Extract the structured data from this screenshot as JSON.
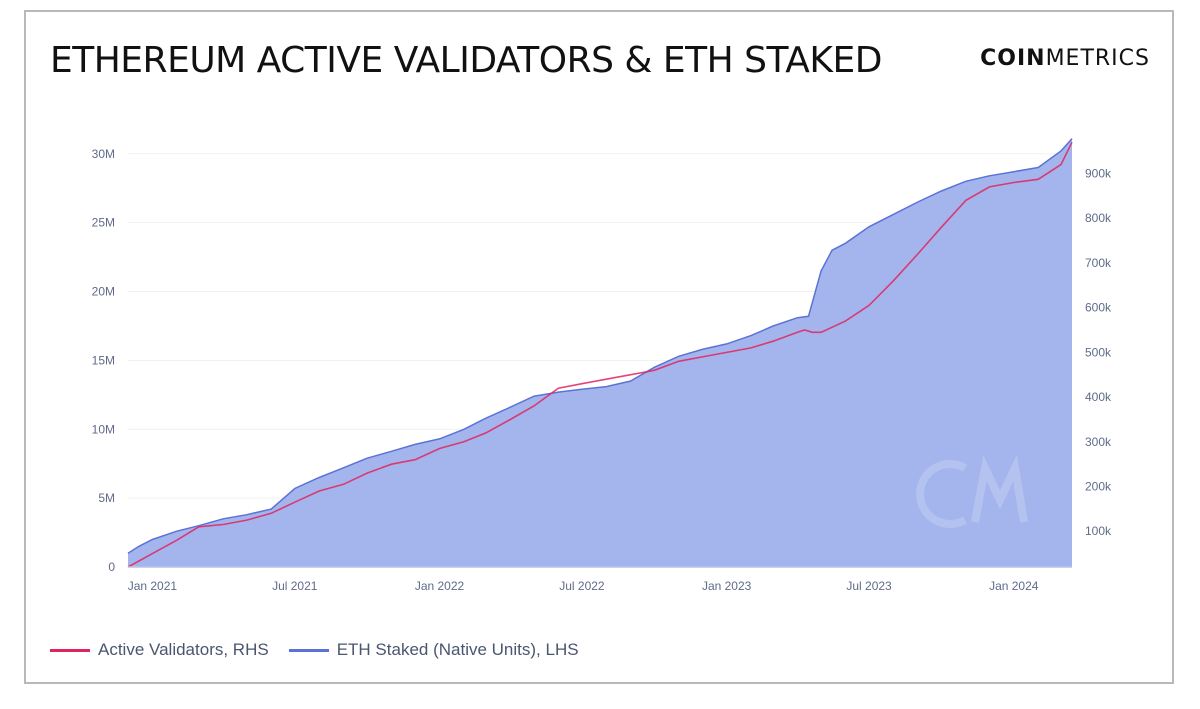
{
  "title": "ETHEREUM ACTIVE VALIDATORS & ETH STAKED",
  "brand": {
    "bold": "COIN",
    "light": "METRICS"
  },
  "colors": {
    "validators": "#e0245e",
    "staked_line": "#5b73d6",
    "staked_fill": "#9fb1ec",
    "tick": "#5f6b8a",
    "axis": "#b8c3e8"
  },
  "chart_data": {
    "type": "area",
    "x_ticks": [
      "Jan 2021",
      "Jul 2021",
      "Jan 2022",
      "Jul 2022",
      "Jan 2023",
      "Jul 2023",
      "Jan 2024"
    ],
    "x_range": [
      "2020-12-01",
      "2024-03-15"
    ],
    "y_left": {
      "ticks": [
        "0",
        "5M",
        "10M",
        "15M",
        "20M",
        "25M",
        "30M"
      ],
      "range": [
        0,
        31000000
      ]
    },
    "y_right": {
      "ticks": [
        "100k",
        "200k",
        "300k",
        "400k",
        "500k",
        "600k",
        "700k",
        "800k",
        "900k"
      ],
      "range": [
        20000,
        975000
      ]
    },
    "series": [
      {
        "name": "ETH Staked (Native Units), LHS",
        "axis": "left",
        "x": [
          "2020-12-01",
          "2020-12-15",
          "2021-01-01",
          "2021-02-01",
          "2021-03-01",
          "2021-04-01",
          "2021-05-01",
          "2021-06-01",
          "2021-07-01",
          "2021-08-01",
          "2021-09-01",
          "2021-10-01",
          "2021-11-01",
          "2021-12-01",
          "2022-01-01",
          "2022-02-01",
          "2022-03-01",
          "2022-04-01",
          "2022-05-01",
          "2022-06-01",
          "2022-07-01",
          "2022-08-01",
          "2022-09-01",
          "2022-10-01",
          "2022-11-01",
          "2022-12-01",
          "2023-01-01",
          "2023-02-01",
          "2023-03-01",
          "2023-04-01",
          "2023-04-15",
          "2023-05-01",
          "2023-05-15",
          "2023-06-01",
          "2023-07-01",
          "2023-08-01",
          "2023-09-01",
          "2023-10-01",
          "2023-11-01",
          "2023-12-01",
          "2024-01-01",
          "2024-02-01",
          "2024-03-01",
          "2024-03-15"
        ],
        "values": [
          1000000,
          1500000,
          2000000,
          2600000,
          3000000,
          3500000,
          3800000,
          4200000,
          5700000,
          6500000,
          7200000,
          7900000,
          8400000,
          8900000,
          9300000,
          10000000,
          10800000,
          11600000,
          12400000,
          12700000,
          12900000,
          13100000,
          13500000,
          14500000,
          15300000,
          15800000,
          16200000,
          16800000,
          17500000,
          18100000,
          18200000,
          21500000,
          23000000,
          23500000,
          24700000,
          25600000,
          26500000,
          27300000,
          28000000,
          28400000,
          28700000,
          29000000,
          30200000,
          31100000
        ]
      },
      {
        "name": "Active Validators, RHS",
        "axis": "right",
        "x": [
          "2020-12-01",
          "2021-01-01",
          "2021-02-01",
          "2021-03-01",
          "2021-04-01",
          "2021-05-01",
          "2021-06-01",
          "2021-07-01",
          "2021-08-01",
          "2021-09-01",
          "2021-10-01",
          "2021-11-01",
          "2021-12-01",
          "2022-01-01",
          "2022-02-01",
          "2022-03-01",
          "2022-04-01",
          "2022-05-01",
          "2022-06-01",
          "2022-07-01",
          "2022-08-01",
          "2022-09-01",
          "2022-10-01",
          "2022-11-01",
          "2022-12-01",
          "2023-01-01",
          "2023-02-01",
          "2023-03-01",
          "2023-04-01",
          "2023-04-10",
          "2023-04-20",
          "2023-05-01",
          "2023-06-01",
          "2023-07-01",
          "2023-08-01",
          "2023-09-01",
          "2023-10-01",
          "2023-11-01",
          "2023-12-01",
          "2024-01-01",
          "2024-02-01",
          "2024-03-01",
          "2024-03-15"
        ],
        "values": [
          20000,
          50000,
          80000,
          110000,
          115000,
          125000,
          140000,
          165000,
          190000,
          205000,
          230000,
          250000,
          260000,
          285000,
          300000,
          320000,
          350000,
          380000,
          420000,
          430000,
          440000,
          450000,
          460000,
          480000,
          490000,
          500000,
          510000,
          525000,
          545000,
          550000,
          545000,
          545000,
          570000,
          605000,
          660000,
          720000,
          780000,
          840000,
          870000,
          880000,
          887000,
          920000,
          970000
        ]
      }
    ],
    "legend": [
      "Active Validators, RHS",
      "ETH Staked (Native Units), LHS"
    ],
    "legend_position": "bottom-left",
    "grid": true
  }
}
